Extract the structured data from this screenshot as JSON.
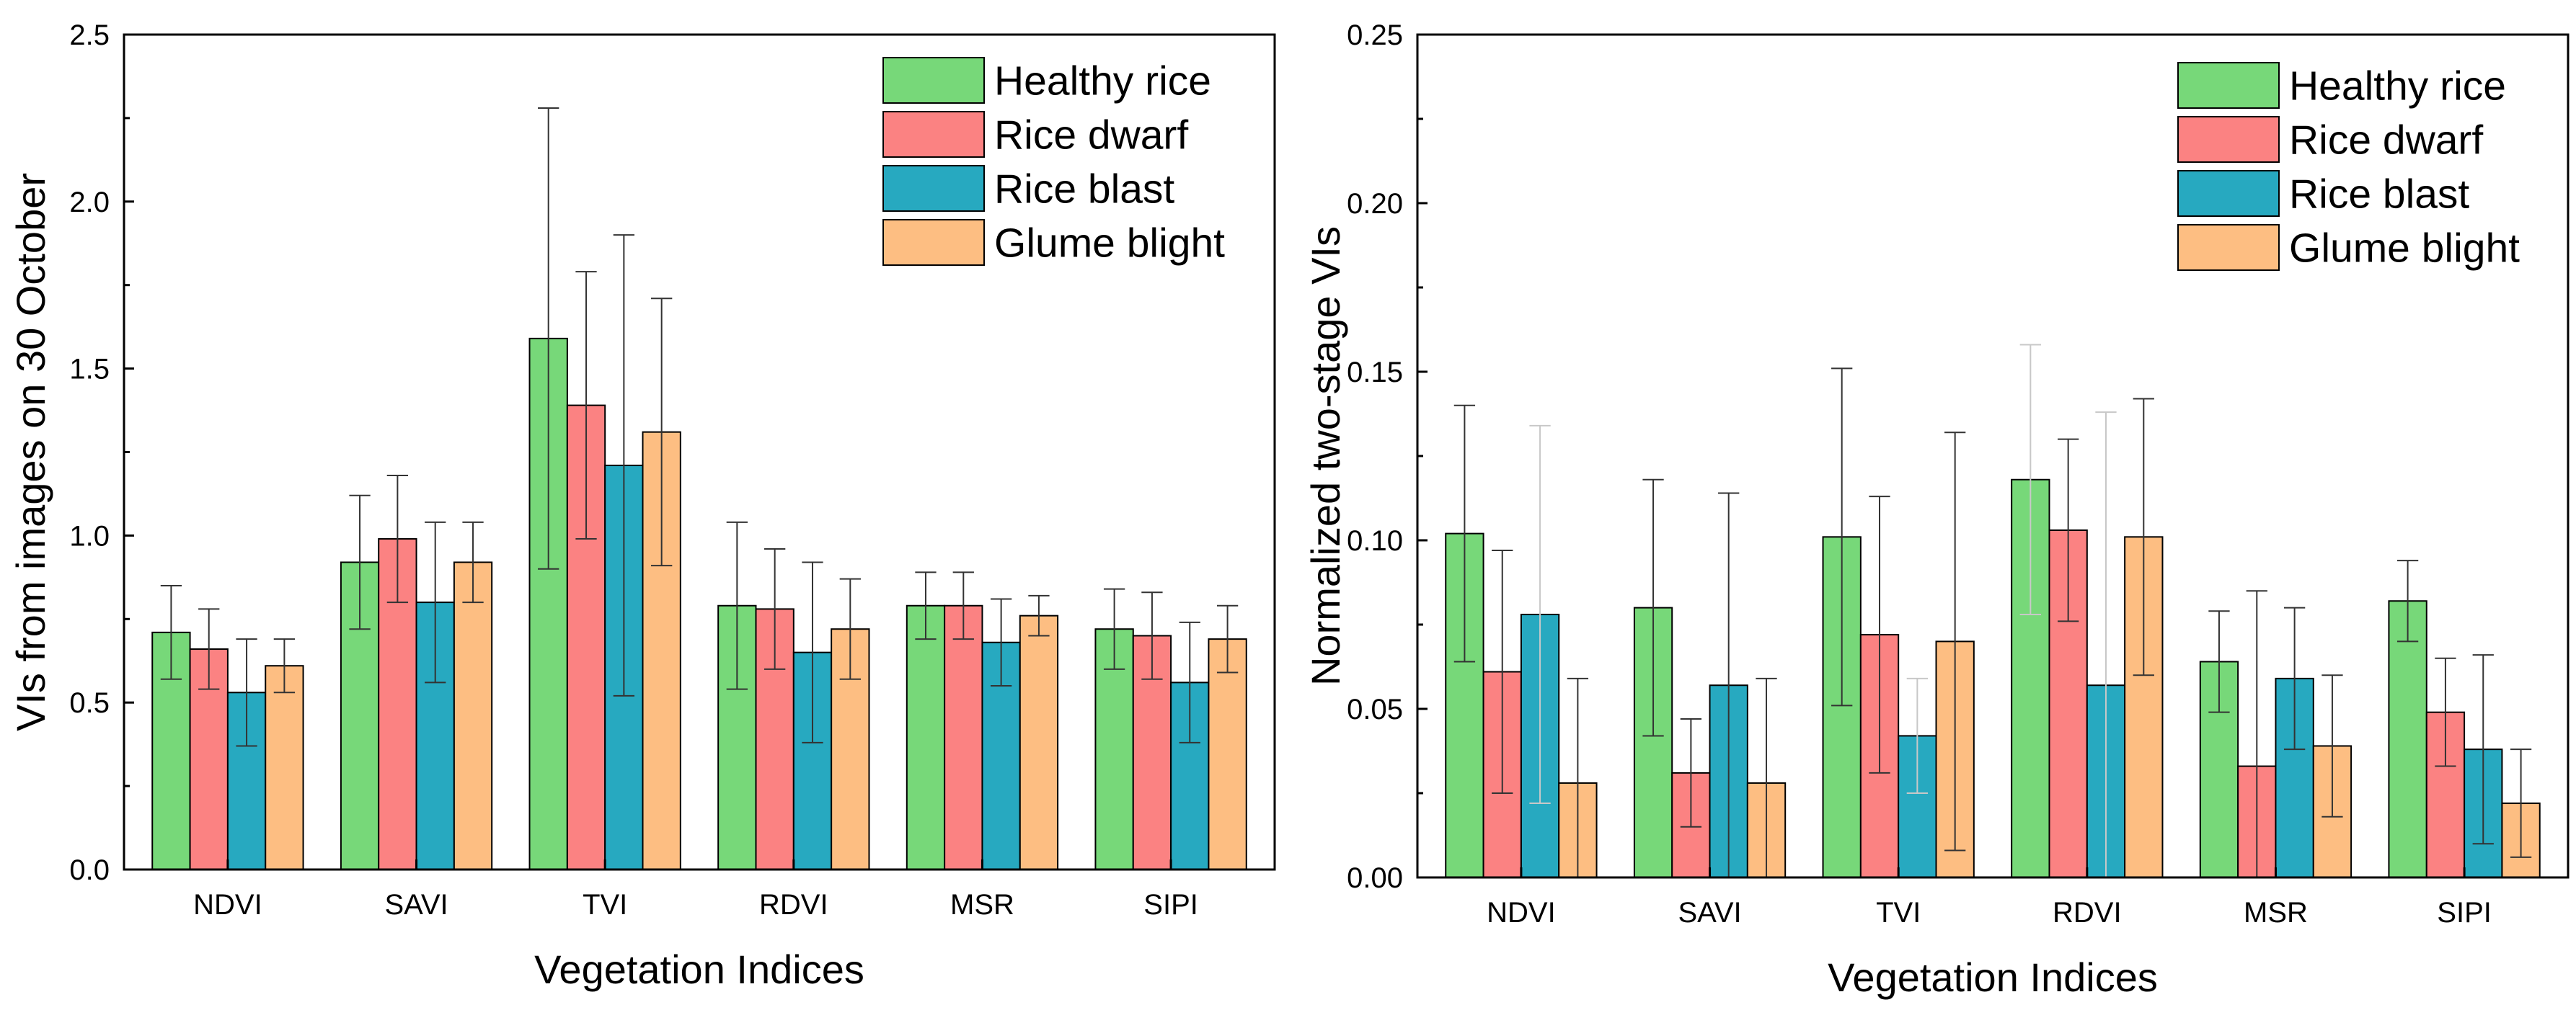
{
  "colors": {
    "healthy": "#77d879",
    "dwarf": "#fb8282",
    "blast": "#27a9c0",
    "glume": "#fdbe82",
    "bar_stroke": "#000000",
    "error_bar": "#333333",
    "error_bar_light": "#c8c8c8"
  },
  "chart_data": [
    {
      "type": "bar",
      "title": "",
      "xlabel": "Vegetation Indices",
      "ylabel": "VIs from images on 30 October",
      "categories": [
        "NDVI",
        "SAVI",
        "TVI",
        "RDVI",
        "MSR",
        "SIPI"
      ],
      "ylim": [
        0,
        2.5
      ],
      "yticks": [
        "0.0",
        "0.5",
        "1.0",
        "1.5",
        "2.0",
        "2.5"
      ],
      "legend_position": "top-right",
      "series": [
        {
          "name": "Healthy rice",
          "color_key": "healthy",
          "values": [
            0.71,
            0.92,
            1.59,
            0.79,
            0.79,
            0.72
          ],
          "errors": [
            0.14,
            0.2,
            0.69,
            0.25,
            0.1,
            0.12
          ]
        },
        {
          "name": "Rice dwarf",
          "color_key": "dwarf",
          "values": [
            0.66,
            0.99,
            1.39,
            0.78,
            0.79,
            0.7
          ],
          "errors": [
            0.12,
            0.19,
            0.4,
            0.18,
            0.1,
            0.13
          ]
        },
        {
          "name": "Rice blast",
          "color_key": "blast",
          "values": [
            0.53,
            0.8,
            1.21,
            0.65,
            0.68,
            0.56
          ],
          "errors": [
            0.16,
            0.24,
            0.69,
            0.27,
            0.13,
            0.18
          ]
        },
        {
          "name": "Glume blight",
          "color_key": "glume",
          "values": [
            0.61,
            0.92,
            1.31,
            0.72,
            0.76,
            0.69
          ],
          "errors": [
            0.08,
            0.12,
            0.4,
            0.15,
            0.06,
            0.1
          ]
        }
      ]
    },
    {
      "type": "bar",
      "title": "",
      "xlabel": "Vegetation Indices",
      "ylabel": "Normalized two-stage VIs",
      "categories": [
        "NDVI",
        "SAVI",
        "TVI",
        "RDVI",
        "MSR",
        "SIPI"
      ],
      "ylim": [
        0,
        0.25
      ],
      "yticks": [
        "0.00",
        "0.05",
        "0.10",
        "0.15",
        "0.20",
        "0.25"
      ],
      "legend_position": "top-right",
      "series": [
        {
          "name": "Healthy rice",
          "color_key": "healthy",
          "values": [
            0.102,
            0.08,
            0.101,
            0.118,
            0.064,
            0.082
          ],
          "errors": [
            0.038,
            0.038,
            0.05,
            0.04,
            0.015,
            0.012
          ]
        },
        {
          "name": "Rice dwarf",
          "color_key": "dwarf",
          "values": [
            0.061,
            0.031,
            0.072,
            0.103,
            0.033,
            0.049
          ],
          "errors": [
            0.036,
            0.016,
            0.041,
            0.027,
            0.052,
            0.016
          ]
        },
        {
          "name": "Rice blast",
          "color_key": "blast",
          "values": [
            0.078,
            0.057,
            0.042,
            0.057,
            0.059,
            0.038
          ],
          "errors": [
            0.056,
            0.057,
            0.017,
            0.081,
            0.021,
            0.028
          ]
        },
        {
          "name": "Glume blight",
          "color_key": "glume",
          "values": [
            0.028,
            0.028,
            0.07,
            0.101,
            0.039,
            0.022
          ],
          "errors": [
            0.031,
            0.031,
            0.062,
            0.041,
            0.021,
            0.016
          ]
        }
      ]
    }
  ]
}
